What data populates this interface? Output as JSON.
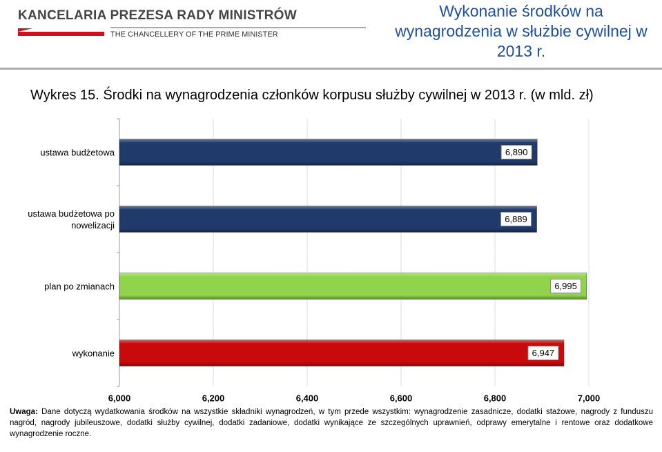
{
  "header": {
    "logo_title": "KANCELARIA PREZESA RADY MINISTRÓW",
    "logo_subtitle": "THE CHANCELLERY OF THE PRIME MINISTER",
    "slide_title": "Wykonanie środków na wynagrodzenia w służbie cywilnej w 2013 r."
  },
  "chart_data": {
    "type": "bar",
    "orientation": "horizontal",
    "title": "Wykres 15. Środki na wynagrodzenia członków korpusu służby cywilnej w 2013 r. (w mld. zł)",
    "categories": [
      "ustawa budżetowa",
      "ustawa budżetowa po nowelizacji",
      "plan po zmianach",
      "wykonanie"
    ],
    "values": [
      6890,
      6889,
      6995,
      6947
    ],
    "value_labels": [
      "6,890",
      "6,889",
      "6,995",
      "6,947"
    ],
    "colors": [
      "#1f3a6b",
      "#1f3a6b",
      "#8fd44a",
      "#c80a0a"
    ],
    "xlim": [
      6000,
      7000
    ],
    "xticks": [
      {
        "value": 6000,
        "label": "6,000"
      },
      {
        "value": 6200,
        "label": "6,200"
      },
      {
        "value": 6400,
        "label": "6,400"
      },
      {
        "value": 6600,
        "label": "6,600"
      },
      {
        "value": 6800,
        "label": "6,800"
      },
      {
        "value": 7000,
        "label": "7,000"
      }
    ],
    "grid": true
  },
  "note": {
    "label": "Uwaga:",
    "text": "Dane dotyczą wydatkowania środków na wszystkie składniki wynagrodzeń, w tym przede wszystkim: wynagrodzenie zasadnicze, dodatki stażowe, nagrody z funduszu nagród, nagrody jubileuszowe, dodatki służby cywilnej, dodatki zadaniowe, dodatki wynikające ze szczególnych uprawnień, odprawy emerytalne i rentowe oraz dodatkowe wynagrodzenie roczne."
  }
}
